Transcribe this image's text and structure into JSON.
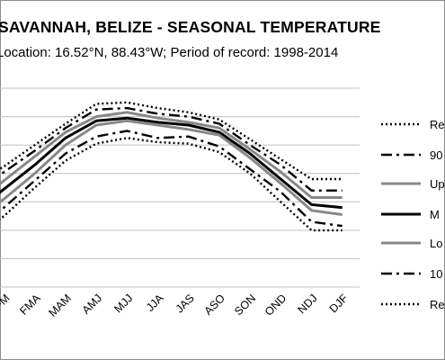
{
  "chart_data": {
    "type": "line",
    "title": "SAVANNAH, BELIZE - SEASONAL TEMPERATURE",
    "subtitle": "Location: 16.52°N, 88.43°W; Period of record: 1998-2014",
    "categories": [
      "DJF",
      "JFM",
      "FMA",
      "MAM",
      "AMJ",
      "MJJ",
      "JJA",
      "JAS",
      "ASO",
      "SON",
      "OND",
      "NDJ",
      "DJF"
    ],
    "tick_labels_visible": [
      "JFM",
      "FMA",
      "MAM",
      "AMJ",
      "MJJ",
      "JJA",
      "JAS",
      "ASO",
      "SON",
      "OND",
      "NDJ",
      "DJF"
    ],
    "legend_labels_visible": [
      "Re",
      "90",
      "Up",
      "M",
      "Lo",
      "10",
      "Re"
    ],
    "grid": true,
    "legend_position": "right",
    "series": [
      {
        "key": "record_high",
        "style": "dotted",
        "color": "#000000",
        "values": [
          22.2,
          23.5,
          25.0,
          26.5,
          27.9,
          28.0,
          27.6,
          27.3,
          26.8,
          25.4,
          24.0,
          22.6,
          22.6
        ]
      },
      {
        "key": "p90",
        "style": "dashdot",
        "color": "#000000",
        "values": [
          21.3,
          23.1,
          24.6,
          26.2,
          27.5,
          27.6,
          27.2,
          27.0,
          26.5,
          25.0,
          23.6,
          21.8,
          21.8
        ]
      },
      {
        "key": "upper_range",
        "style": "solid",
        "color": "#888888",
        "values": [
          20.8,
          22.5,
          24.2,
          25.9,
          27.0,
          27.3,
          26.9,
          26.6,
          26.2,
          24.7,
          23.1,
          21.3,
          21.3
        ]
      },
      {
        "key": "mean",
        "style": "solid",
        "color": "#000000",
        "values": [
          20.2,
          21.9,
          23.6,
          25.5,
          26.7,
          26.9,
          26.6,
          26.4,
          25.9,
          24.4,
          22.6,
          20.8,
          20.6
        ]
      },
      {
        "key": "lower_range",
        "style": "solid",
        "color": "#888888",
        "values": [
          19.6,
          21.2,
          23.0,
          25.0,
          26.4,
          26.7,
          26.4,
          26.1,
          25.7,
          24.1,
          22.3,
          20.4,
          20.1
        ]
      },
      {
        "key": "p10",
        "style": "dashdot",
        "color": "#000000",
        "values": [
          18.9,
          20.6,
          22.5,
          24.4,
          25.6,
          26.0,
          25.5,
          25.6,
          24.9,
          23.3,
          21.7,
          19.6,
          19.3
        ]
      },
      {
        "key": "record_low",
        "style": "dotted",
        "color": "#000000",
        "values": [
          18.4,
          20.0,
          22.0,
          23.9,
          25.1,
          25.5,
          25.2,
          25.1,
          24.5,
          23.0,
          21.0,
          19.0,
          19.0
        ]
      }
    ]
  }
}
